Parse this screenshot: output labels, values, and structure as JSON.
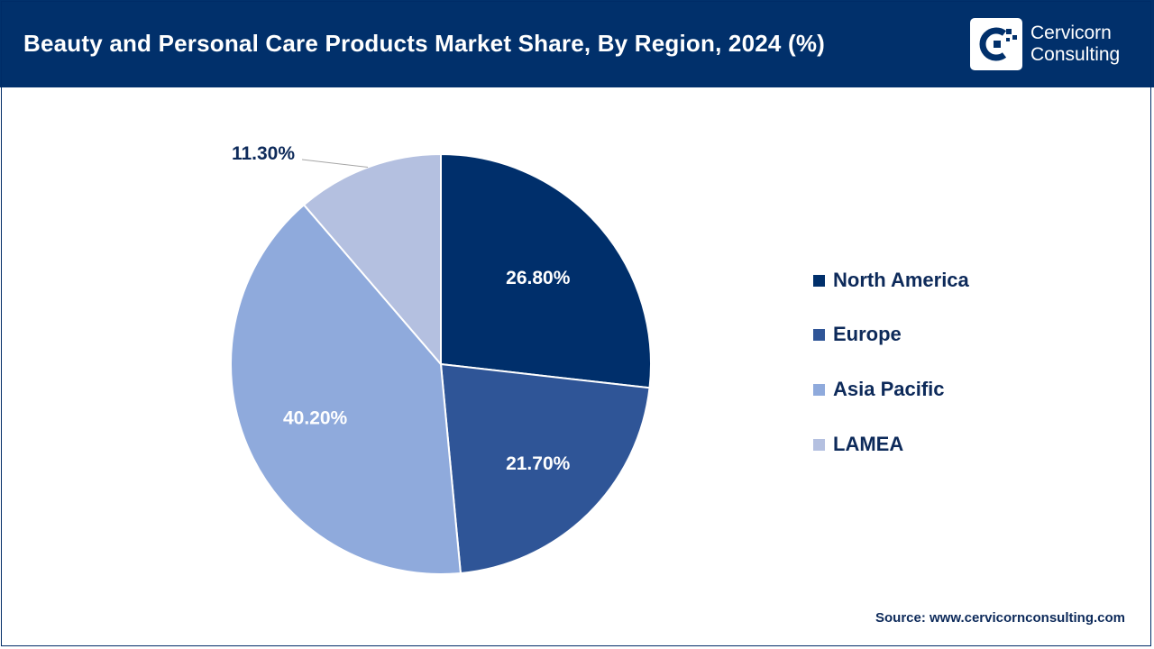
{
  "header": {
    "title": "Beauty and Personal Care Products Market Share, By Region, 2024 (%)",
    "logo_line1": "Cervicorn",
    "logo_line2": "Consulting"
  },
  "source": "Source: www.cervicornconsulting.com",
  "colors": {
    "header_bg": "#01306b",
    "north_america": "#002f6b",
    "europe": "#2f5597",
    "asia_pacific": "#8faadc",
    "lamea": "#b4c0e0"
  },
  "chart_data": {
    "type": "pie",
    "title": "Beauty and Personal Care Products Market Share, By Region, 2024 (%)",
    "categories": [
      "North America",
      "Europe",
      "Asia Pacific",
      "LAMEA"
    ],
    "values": [
      26.8,
      21.7,
      40.2,
      11.3
    ],
    "labels": [
      "26.80%",
      "21.70%",
      "40.20%",
      "11.30%"
    ],
    "colors": [
      "#002f6b",
      "#2f5597",
      "#8faadc",
      "#b4c0e0"
    ],
    "start": "12 o'clock, clockwise",
    "legend_position": "right"
  },
  "legend": {
    "items": [
      {
        "label": "North America",
        "color": "#002f6b"
      },
      {
        "label": "Europe",
        "color": "#2f5597"
      },
      {
        "label": "Asia Pacific",
        "color": "#8faadc"
      },
      {
        "label": "LAMEA",
        "color": "#b4c0e0"
      }
    ]
  }
}
